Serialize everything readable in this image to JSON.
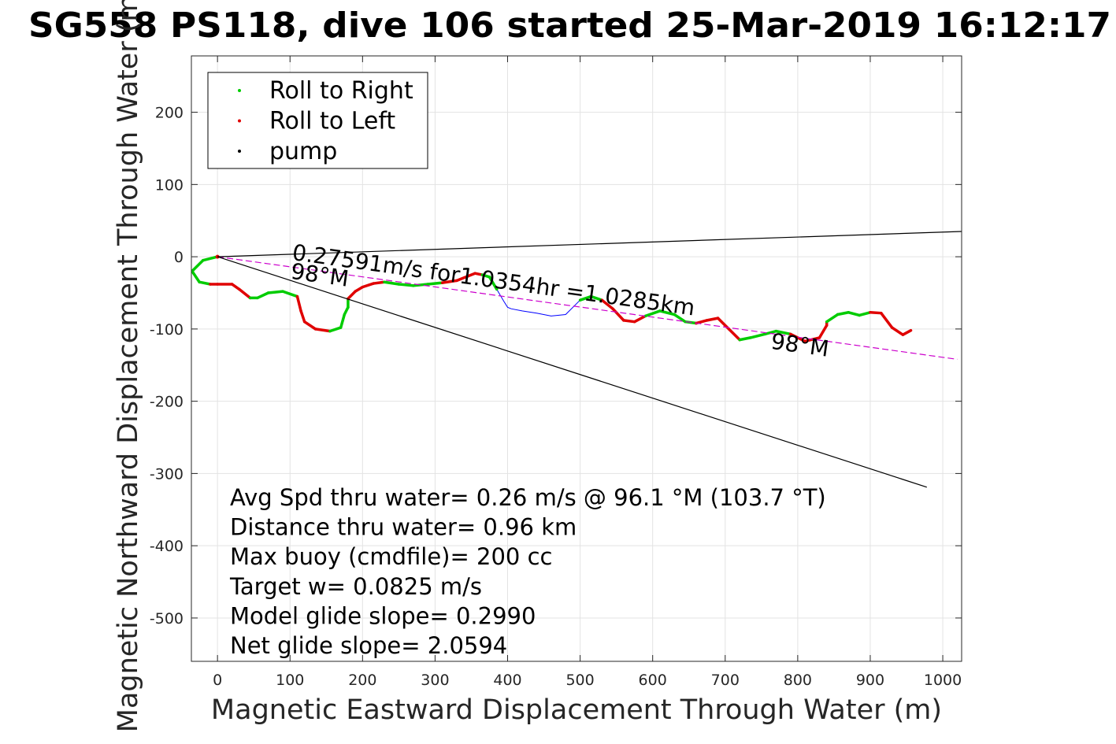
{
  "chart_data": {
    "type": "line",
    "title": "SG558 PS118, dive 106 started 25-Mar-2019 16:12:17",
    "xlabel": "Magnetic Eastward Displacement Through Water (m)",
    "ylabel": "Magnetic Northward Displacement Through Water (m)",
    "xlim": [
      -36,
      1026
    ],
    "ylim": [
      -560,
      278
    ],
    "grid": true,
    "xticks": [
      0,
      100,
      200,
      300,
      400,
      500,
      600,
      700,
      800,
      900,
      1000
    ],
    "yticks": [
      200,
      100,
      0,
      -100,
      -200,
      -300,
      -400,
      -500
    ],
    "legend": {
      "placement": "top-left",
      "entries": [
        {
          "label": "Roll to Right",
          "color": "#00cc00"
        },
        {
          "label": "Roll to Left",
          "color": "#e00000"
        },
        {
          "label": "pump",
          "color": "#000000"
        }
      ]
    },
    "series": [
      {
        "name": "track",
        "color": "#0000ff",
        "x": [
          0,
          -20,
          -35,
          -25,
          -10,
          0,
          20,
          30,
          45,
          55,
          70,
          90,
          110,
          115,
          120,
          135,
          155,
          170,
          175,
          180,
          180,
          190,
          200,
          215,
          230,
          250,
          270,
          290,
          310,
          330,
          345,
          355,
          365,
          375,
          385,
          395,
          400,
          405,
          420,
          440,
          460,
          480,
          500,
          515,
          530,
          545,
          560,
          575,
          590,
          610,
          630,
          645,
          660,
          675,
          690,
          705,
          720,
          735,
          755,
          770,
          790,
          810,
          830,
          840,
          840,
          855,
          870,
          885,
          900,
          915,
          930,
          945,
          956
        ],
        "y": [
          0,
          -5,
          -20,
          -35,
          -38,
          -38,
          -38,
          -45,
          -57,
          -57,
          -50,
          -48,
          -55,
          -75,
          -90,
          -100,
          -103,
          -98,
          -80,
          -70,
          -58,
          -48,
          -42,
          -37,
          -35,
          -38,
          -40,
          -38,
          -36,
          -33,
          -27,
          -23,
          -25,
          -28,
          -45,
          -62,
          -70,
          -72,
          -75,
          -78,
          -82,
          -80,
          -60,
          -55,
          -60,
          -72,
          -88,
          -90,
          -82,
          -75,
          -80,
          -90,
          -92,
          -88,
          -85,
          -100,
          -115,
          -112,
          -107,
          -103,
          -107,
          -117,
          -112,
          -95,
          -90,
          -80,
          -77,
          -81,
          -77,
          -78,
          -98,
          -108,
          -102
        ]
      },
      {
        "name": "heading line",
        "color": "#cc00cc",
        "x": [
          0,
          1020
        ],
        "y": [
          0,
          -142
        ]
      },
      {
        "name": "upper bound",
        "color": "#000000",
        "x": [
          0,
          1026
        ],
        "y": [
          0,
          35
        ]
      },
      {
        "name": "lower bound",
        "color": "#000000",
        "x": [
          0,
          978
        ],
        "y": [
          0,
          -319
        ]
      }
    ],
    "annotations": [
      {
        "text": "0.27591m/s for1.0354hr =1.0285km",
        "x": 102,
        "y": -4
      },
      {
        "text": "98°M",
        "x": 100,
        "y": -30
      },
      {
        "text": "98°M",
        "x": 762,
        "y": -127
      }
    ],
    "stats": [
      "Avg Spd thru water=  0.26 m/s @  96.1 °M (103.7 °T)",
      "Distance thru water=  0.96 km",
      "Max buoy (cmdfile)= 200 cc",
      "Target w= 0.0825 m/s",
      "Model glide slope= 0.2990",
      "Net glide slope= 2.0594"
    ]
  }
}
